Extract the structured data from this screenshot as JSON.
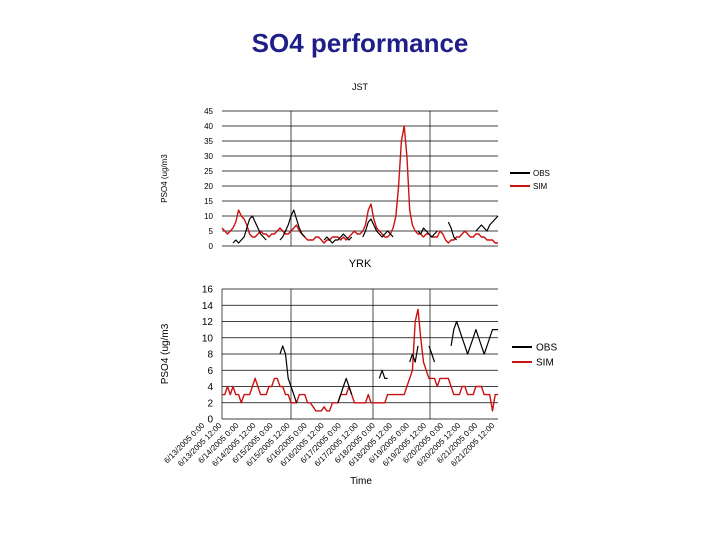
{
  "slide": {
    "title": "SO4 performance"
  },
  "chart_data": [
    {
      "type": "line",
      "title": "JST",
      "ylabel": "PSO4 (ug/m3",
      "xlabel": "",
      "ylim": [
        0,
        45
      ],
      "yticks": [
        "0",
        "5",
        "10",
        "15",
        "20",
        "25",
        "30",
        "35",
        "40",
        "45"
      ],
      "grid": "horizontal and vertical lines",
      "legend": "right",
      "colors": {
        "OBS": "#000000",
        "SIM": "#cc1111"
      },
      "x": [
        0,
        1,
        2,
        3,
        4,
        5,
        6,
        7,
        8,
        9,
        10,
        11,
        12,
        13,
        14,
        15,
        16,
        17,
        18,
        19,
        20,
        21,
        22,
        23,
        24,
        25,
        26,
        27,
        28,
        29,
        30,
        31,
        32,
        33,
        34,
        35,
        36,
        37,
        38,
        39,
        40,
        41,
        42,
        43,
        44,
        45,
        46,
        47,
        48,
        49,
        50,
        51,
        52,
        53,
        54,
        55,
        56,
        57,
        58,
        59,
        60,
        61,
        62,
        63,
        64,
        65,
        66,
        67,
        68,
        69,
        70,
        71,
        72,
        73,
        74,
        75,
        76,
        77,
        78,
        79,
        80,
        81,
        82,
        83,
        84,
        85,
        86,
        87,
        88,
        89,
        90,
        91,
        92,
        93,
        94,
        95,
        96,
        97,
        98,
        99,
        100
      ],
      "series": [
        {
          "name": "OBS",
          "values": [
            null,
            null,
            null,
            null,
            1,
            2,
            1,
            2,
            3,
            6,
            9,
            10,
            8,
            6,
            4,
            3,
            2,
            null,
            null,
            null,
            null,
            2,
            3,
            5,
            7,
            10,
            12,
            9,
            6,
            4,
            3,
            null,
            null,
            null,
            null,
            null,
            null,
            2,
            3,
            2,
            1,
            2,
            2,
            3,
            4,
            3,
            2,
            3,
            null,
            null,
            null,
            3,
            5,
            8,
            9,
            7,
            5,
            4,
            3,
            4,
            5,
            4,
            3,
            null,
            null,
            null,
            null,
            null,
            null,
            null,
            null,
            5,
            4,
            6,
            5,
            4,
            3,
            4,
            5,
            null,
            null,
            null,
            8,
            6,
            3,
            2,
            null,
            null,
            null,
            null,
            null,
            null,
            5,
            6,
            7,
            6,
            5,
            7,
            8,
            9,
            10
          ]
        },
        {
          "name": "SIM",
          "values": [
            6,
            5,
            4,
            5,
            6,
            8,
            12,
            10,
            9,
            7,
            4,
            3,
            3,
            4,
            5,
            4,
            4,
            3,
            4,
            4,
            5,
            6,
            5,
            4,
            4,
            5,
            6,
            7,
            5,
            4,
            3,
            2,
            2,
            2,
            3,
            3,
            2,
            1,
            2,
            2,
            3,
            3,
            3,
            2,
            3,
            2,
            3,
            4,
            5,
            4,
            4,
            5,
            7,
            12,
            14,
            9,
            6,
            5,
            4,
            3,
            3,
            4,
            6,
            10,
            20,
            35,
            40,
            30,
            12,
            7,
            5,
            4,
            4,
            3,
            4,
            4,
            3,
            3,
            3,
            5,
            4,
            2,
            1,
            2,
            2,
            3,
            3,
            4,
            5,
            4,
            3,
            3,
            4,
            4,
            3,
            3,
            2,
            2,
            2,
            1,
            1
          ]
        }
      ]
    },
    {
      "type": "line",
      "title": "YRK",
      "ylabel": "PSO4 (ug/m3",
      "xlabel": "Time",
      "ylim": [
        0,
        16
      ],
      "yticks": [
        "0",
        "2",
        "4",
        "6",
        "8",
        "10",
        "12",
        "14",
        "16"
      ],
      "grid": "horizontal and vertical lines",
      "legend": "right",
      "colors": {
        "OBS": "#000000",
        "SIM": "#cc1111"
      },
      "categories": [
        "6/13/2005 0:00",
        "6/13/2005 12:00",
        "6/14/2005 0:00",
        "6/14/2005 12:00",
        "6/15/2005 0:00",
        "6/15/2005 12:00",
        "6/16/2005 0:00",
        "6/16/2005 12:00",
        "6/17/2005 0:00",
        "6/17/2005 12:00",
        "6/18/2005 0:00",
        "6/18/2005 12:00",
        "6/19/2005 0:00",
        "6/19/2005 12:00",
        "6/20/2005 0:00",
        "6/20/2005 12:00",
        "6/21/2005 0:00",
        "6/21/2005 12:00"
      ],
      "x": [
        0,
        1,
        2,
        3,
        4,
        5,
        6,
        7,
        8,
        9,
        10,
        11,
        12,
        13,
        14,
        15,
        16,
        17,
        18,
        19,
        20,
        21,
        22,
        23,
        24,
        25,
        26,
        27,
        28,
        29,
        30,
        31,
        32,
        33,
        34,
        35,
        36,
        37,
        38,
        39,
        40,
        41,
        42,
        43,
        44,
        45,
        46,
        47,
        48,
        49,
        50,
        51,
        52,
        53,
        54,
        55,
        56,
        57,
        58,
        59,
        60,
        61,
        62,
        63,
        64,
        65,
        66,
        67,
        68,
        69,
        70,
        71,
        72,
        73,
        74,
        75,
        76,
        77,
        78,
        79,
        80,
        81,
        82,
        83,
        84,
        85,
        86,
        87,
        88,
        89,
        90,
        91,
        92,
        93,
        94,
        95,
        96,
        97,
        98,
        99,
        100
      ],
      "series": [
        {
          "name": "OBS",
          "values": [
            null,
            null,
            null,
            null,
            null,
            null,
            null,
            null,
            null,
            null,
            null,
            null,
            null,
            null,
            null,
            null,
            null,
            null,
            null,
            null,
            null,
            8,
            9,
            8,
            5,
            4,
            3,
            2,
            null,
            null,
            null,
            null,
            null,
            null,
            null,
            null,
            null,
            null,
            null,
            null,
            null,
            null,
            2,
            3,
            4,
            5,
            4,
            3,
            null,
            null,
            null,
            null,
            null,
            null,
            null,
            null,
            null,
            5,
            6,
            5,
            5,
            null,
            null,
            null,
            null,
            null,
            null,
            null,
            7,
            8,
            7,
            9,
            null,
            null,
            null,
            9,
            8,
            7,
            null,
            null,
            null,
            null,
            null,
            9,
            11,
            12,
            11,
            10,
            9,
            8,
            9,
            10,
            11,
            10,
            9,
            8,
            9,
            10,
            11,
            11,
            11
          ]
        },
        {
          "name": "SIM",
          "values": [
            3,
            3,
            4,
            3,
            4,
            3,
            3,
            2,
            3,
            3,
            3,
            4,
            5,
            4,
            3,
            3,
            3,
            4,
            4,
            5,
            5,
            4,
            4,
            3,
            3,
            2,
            2,
            2,
            3,
            3,
            3,
            2,
            2,
            1.5,
            1,
            1,
            1,
            1.5,
            1,
            1,
            2,
            2,
            2,
            3,
            3,
            3,
            4,
            3,
            2,
            2,
            2,
            2,
            2,
            3,
            2,
            2,
            2,
            2,
            2,
            2,
            3,
            3,
            3,
            3,
            3,
            3,
            3,
            4,
            5,
            6,
            12,
            13.5,
            10,
            7,
            6,
            5,
            5,
            5,
            4,
            5,
            5,
            5,
            5,
            4,
            3,
            3,
            3,
            4,
            4,
            3,
            3,
            3,
            4,
            4,
            4,
            3,
            3,
            3,
            1,
            3,
            3
          ]
        }
      ]
    }
  ]
}
